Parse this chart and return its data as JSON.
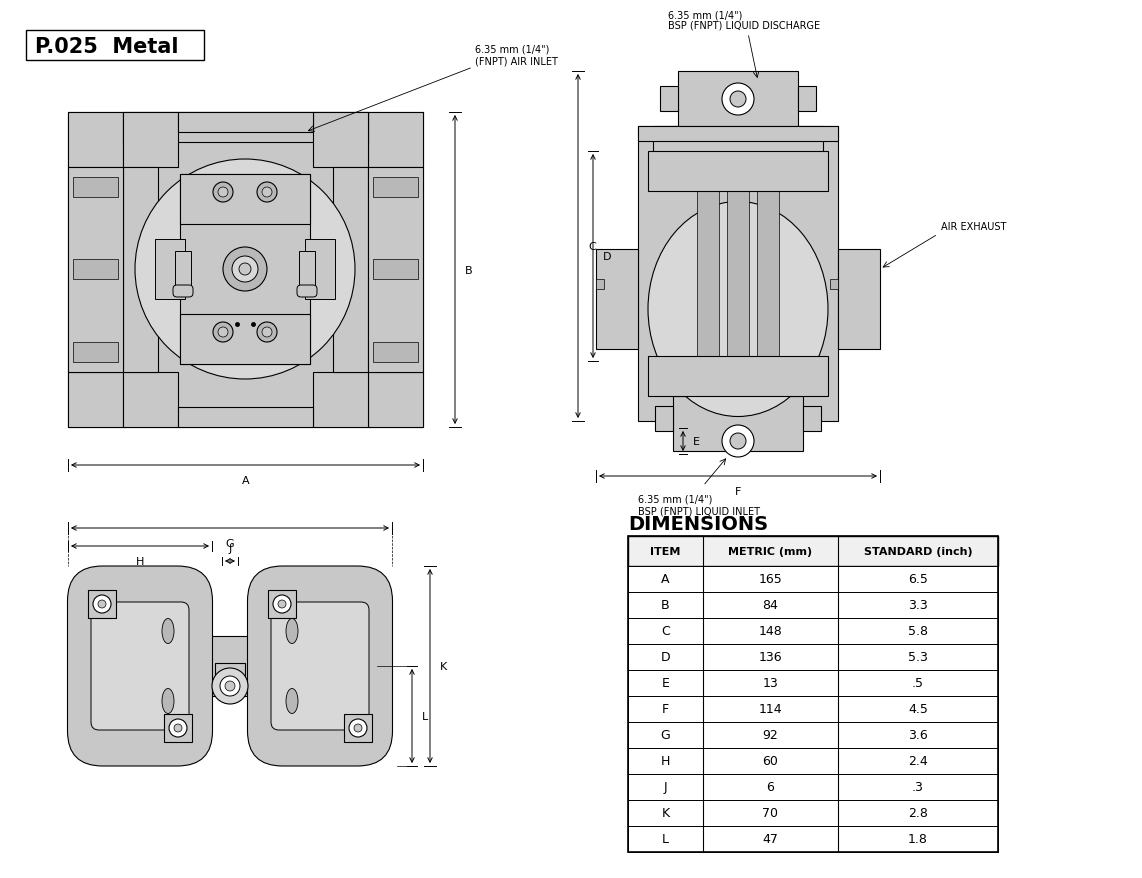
{
  "title": "P.025  Metal",
  "background_color": "#ffffff",
  "pump_color": "#c8c8c8",
  "pump_color2": "#d8d8d8",
  "pump_color3": "#b8b8b8",
  "line_color": "#000000",
  "annotations": {
    "air_inlet_line1": "6.35 mm (1/4\")",
    "air_inlet_line2": "(FNPT) AIR INLET",
    "liquid_discharge_line1": "6.35 mm (1/4\")",
    "liquid_discharge_line2": "BSP (FNPT) LIQUID DISCHARGE",
    "air_exhaust": "AIR EXHAUST",
    "liquid_inlet_line1": "6.35 mm (1/4\")",
    "liquid_inlet_line2": "BSP (FNPT) LIQUID INLET"
  },
  "dimensions_title": "DIMENSIONS",
  "table_headers": [
    "ITEM",
    "METRIC (mm)",
    "STANDARD (inch)"
  ],
  "table_data": [
    [
      "A",
      "165",
      "6.5"
    ],
    [
      "B",
      "84",
      "3.3"
    ],
    [
      "C",
      "148",
      "5.8"
    ],
    [
      "D",
      "136",
      "5.3"
    ],
    [
      "E",
      "13",
      ".5"
    ],
    [
      "F",
      "114",
      "4.5"
    ],
    [
      "G",
      "92",
      "3.6"
    ],
    [
      "H",
      "60",
      "2.4"
    ],
    [
      "J",
      "6",
      ".3"
    ],
    [
      "K",
      "70",
      "2.8"
    ],
    [
      "L",
      "47",
      "1.8"
    ]
  ]
}
